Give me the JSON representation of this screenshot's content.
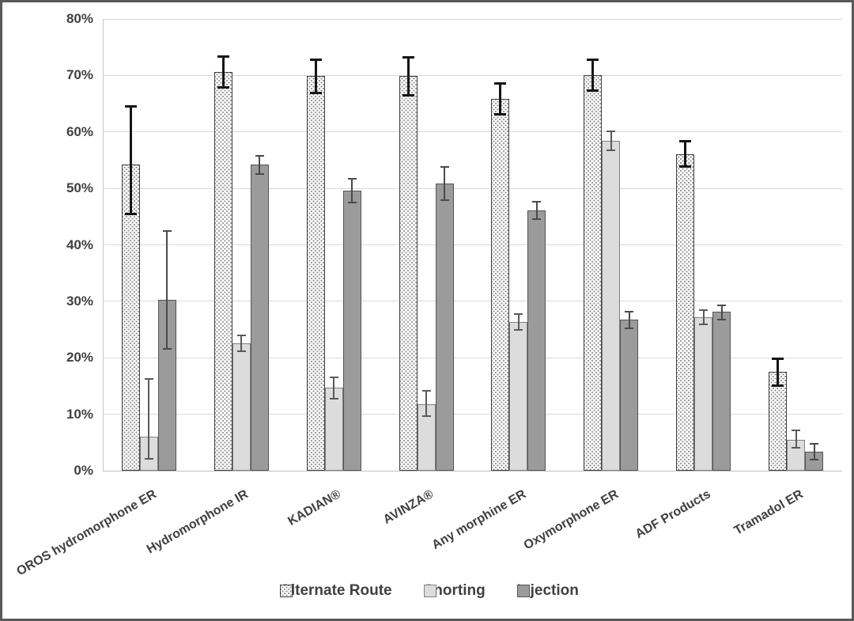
{
  "chart_data": {
    "type": "bar",
    "title": "",
    "xlabel": "",
    "ylabel": "",
    "ylim": [
      0,
      80
    ],
    "y_ticks": [
      "0%",
      "10%",
      "20%",
      "30%",
      "40%",
      "50%",
      "60%",
      "70%",
      "80%"
    ],
    "grid": true,
    "legend_position": "bottom",
    "categories": [
      "OROS hydromorphone ER",
      "Hydromorphone IR",
      "KADIAN®",
      "AVINZA®",
      "Any morphine ER",
      "Oxymorphone ER",
      "ADF Products",
      "Tramadol ER"
    ],
    "series": [
      {
        "name": "Alternate Route",
        "values": [
          54.2,
          70.6,
          69.9,
          69.9,
          65.8,
          70.1,
          56.0,
          17.5
        ],
        "error_low": [
          45.5,
          67.9,
          67.0,
          66.5,
          63.2,
          67.4,
          54.0,
          15.2
        ],
        "error_high": [
          64.6,
          73.4,
          72.9,
          73.3,
          68.6,
          72.9,
          58.4,
          19.9
        ],
        "fill": "dotted-pattern",
        "error_color": "#151515"
      },
      {
        "name": "Snorting",
        "values": [
          6.0,
          22.6,
          14.7,
          11.8,
          26.3,
          58.4,
          27.2,
          5.5
        ],
        "error_low": [
          2.1,
          21.2,
          12.7,
          9.6,
          24.9,
          56.7,
          25.9,
          4.0
        ],
        "error_high": [
          16.2,
          23.9,
          16.5,
          14.2,
          27.7,
          60.1,
          28.4,
          7.2
        ],
        "fill": "#dcdcdc",
        "error_color": "#5a5a5a"
      },
      {
        "name": "Injection",
        "values": [
          30.2,
          54.2,
          49.6,
          50.8,
          46.1,
          26.7,
          28.1,
          3.3
        ],
        "error_low": [
          21.6,
          52.6,
          47.5,
          47.9,
          44.6,
          25.2,
          26.8,
          1.9
        ],
        "error_high": [
          42.4,
          55.8,
          51.7,
          53.8,
          47.6,
          28.1,
          29.3,
          4.7
        ],
        "fill": "#9b9b9b",
        "error_color": "#4a4a4a"
      }
    ],
    "colors": {
      "grid": "#d9d9d9",
      "axis": "#bfbfbf",
      "text": "#404040",
      "frame_border": "#595959",
      "snorting_fill": "#dcdcdc",
      "injection_fill": "#9b9b9b",
      "alternate_route_fill": "#ffffff"
    }
  }
}
